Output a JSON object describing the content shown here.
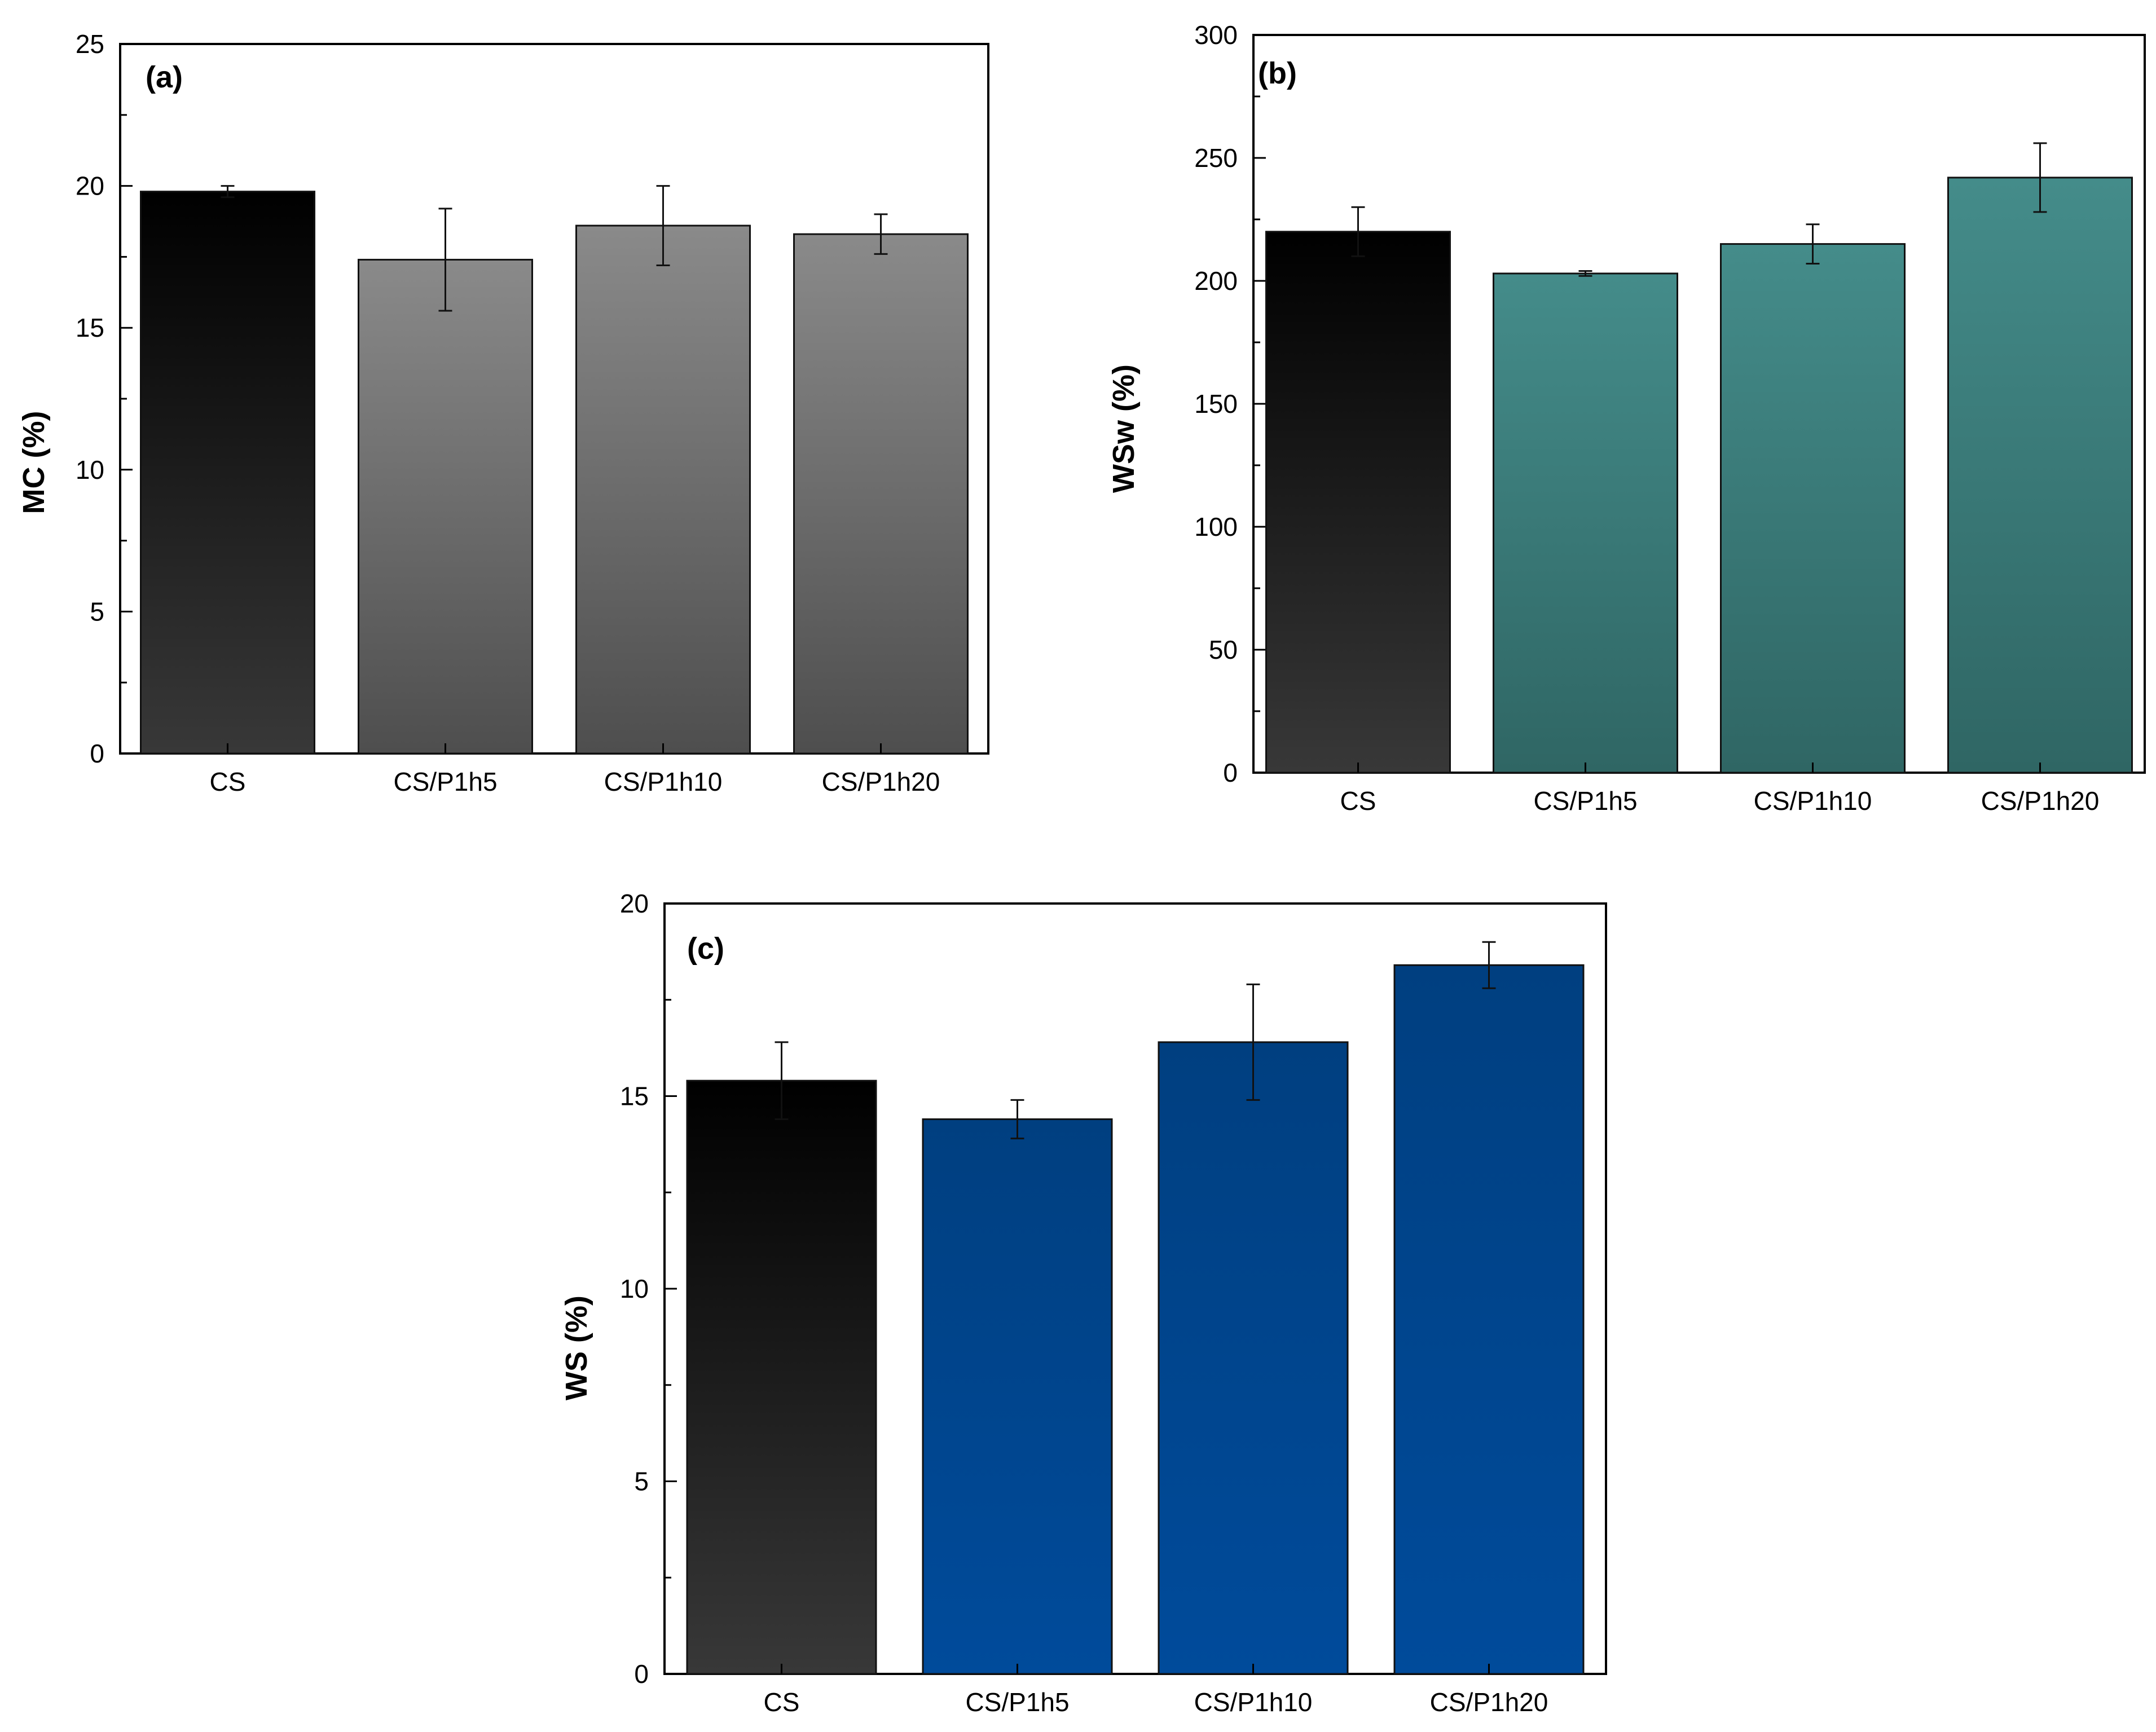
{
  "chart_data": [
    {
      "id": "a",
      "type": "bar",
      "panel_label": "(a)",
      "title": "",
      "xlabel": "",
      "ylabel": "MC (%)",
      "categories": [
        "CS",
        "CS/P1h5",
        "CS/P1h10",
        "CS/P1h20"
      ],
      "values": [
        19.8,
        17.4,
        18.6,
        18.3
      ],
      "errors": [
        0.2,
        1.8,
        1.4,
        0.7
      ],
      "ylim": [
        0,
        25
      ],
      "yticks": [
        0,
        5,
        10,
        15,
        20,
        25
      ],
      "ytick_labels": [
        "0",
        "5",
        "10",
        "15",
        "20",
        "25"
      ],
      "colors": {
        "control_top": "#000000",
        "control_bottom": "#383838",
        "series_top": "#8a8a8a",
        "series_bottom": "#4e4e4e"
      }
    },
    {
      "id": "b",
      "type": "bar",
      "panel_label": "(b)",
      "title": "",
      "xlabel": "",
      "ylabel": "WSw (%)",
      "categories": [
        "CS",
        "CS/P1h5",
        "CS/P1h10",
        "CS/P1h20"
      ],
      "values": [
        220,
        203,
        215,
        242
      ],
      "errors": [
        10,
        1,
        8,
        14
      ],
      "ylim": [
        0,
        300
      ],
      "yticks": [
        0,
        50,
        100,
        150,
        200,
        250,
        300
      ],
      "ytick_labels": [
        "0",
        "50",
        "100",
        "150",
        "200",
        "250",
        "300"
      ],
      "colors": {
        "control_top": "#000000",
        "control_bottom": "#383838",
        "series_top": "#448c8a",
        "series_bottom": "#2f6664"
      }
    },
    {
      "id": "c",
      "type": "bar",
      "panel_label": "(c)",
      "title": "",
      "xlabel": "",
      "ylabel": "WS (%)",
      "categories": [
        "CS",
        "CS/P1h5",
        "CS/P1h10",
        "CS/P1h20"
      ],
      "values": [
        15.4,
        14.4,
        16.4,
        18.4
      ],
      "errors": [
        1.0,
        0.5,
        1.5,
        0.6
      ],
      "ylim": [
        0,
        20
      ],
      "yticks": [
        0,
        5,
        10,
        15,
        20
      ],
      "ytick_labels": [
        "0",
        "5",
        "10",
        "15",
        "20"
      ],
      "colors": {
        "control_top": "#000000",
        "control_bottom": "#383838",
        "series_top": "#003f80",
        "series_bottom": "#004b9b"
      }
    }
  ]
}
